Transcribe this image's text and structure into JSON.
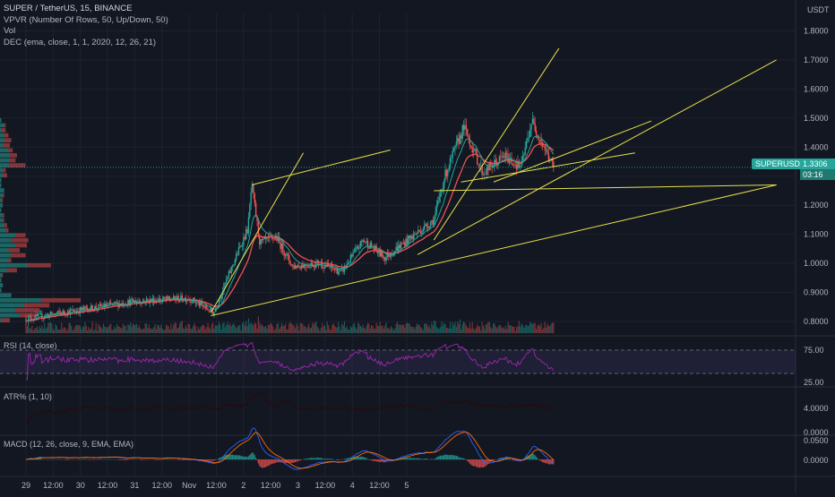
{
  "legend": {
    "symbol": "SUPER / TetherUS, 15, BINANCE",
    "ind1": "VPVR (Number Of Rows, 50, Up/Down, 50)",
    "ind2": "Vol",
    "ind3": "DEC (ema, close, 1, 1, 2020, 12, 26, 21)"
  },
  "currency": "USDT",
  "symbol_tag": "SUPERUSDT",
  "last_price": "1.3306",
  "countdown": "03:16",
  "panes": {
    "rsi": {
      "label": "RSI (14, close)",
      "ticks": [
        "75.00",
        "25.00"
      ]
    },
    "atr": {
      "label": "ATR% (1, 10)",
      "ticks": [
        "4.0000",
        "0.0000"
      ]
    },
    "macd": {
      "label": "MACD (12, 26, close, 9, EMA, EMA)",
      "ticks": [
        "0.0500",
        "0.0000"
      ]
    }
  },
  "colors": {
    "up": "#26a69a",
    "down": "#ef5350",
    "ema": "#ef5350",
    "trend": "#e6e04a",
    "rsi": "#9c27b0",
    "macd": "#2962ff",
    "signal": "#ff6d00"
  },
  "chart_data": {
    "type": "candlestick",
    "price_axis": [
      "1.8000",
      "1.7000",
      "1.6000",
      "1.5000",
      "1.4000",
      "1.3000",
      "1.2000",
      "1.1000",
      "1.0000",
      "0.9000",
      "0.8000"
    ],
    "time_axis": [
      "29",
      "12:00",
      "30",
      "12:00",
      "31",
      "12:00",
      "Nov",
      "12:00",
      "2",
      "12:00",
      "3",
      "12:00",
      "4",
      "12:00",
      "5"
    ],
    "ylim": [
      0.76,
      1.86
    ],
    "key_prices": [
      {
        "t": 0.0,
        "p": 0.81
      },
      {
        "t": 2.0,
        "p": 0.87
      },
      {
        "t": 3.0,
        "p": 0.88
      },
      {
        "t": 3.45,
        "p": 0.83
      },
      {
        "t": 3.9,
        "p": 1.04
      },
      {
        "t": 4.08,
        "p": 1.12
      },
      {
        "t": 4.15,
        "p": 1.27
      },
      {
        "t": 4.3,
        "p": 1.07
      },
      {
        "t": 4.6,
        "p": 1.09
      },
      {
        "t": 4.9,
        "p": 0.99
      },
      {
        "t": 5.4,
        "p": 1.0
      },
      {
        "t": 5.8,
        "p": 0.97
      },
      {
        "t": 6.2,
        "p": 1.08
      },
      {
        "t": 6.6,
        "p": 1.02
      },
      {
        "t": 7.5,
        "p": 1.15
      },
      {
        "t": 7.7,
        "p": 1.3
      },
      {
        "t": 8.05,
        "p": 1.47
      },
      {
        "t": 8.4,
        "p": 1.31
      },
      {
        "t": 8.8,
        "p": 1.37
      },
      {
        "t": 9.1,
        "p": 1.33
      },
      {
        "t": 9.3,
        "p": 1.49
      },
      {
        "t": 9.7,
        "p": 1.3306
      }
    ],
    "trend_lines": [
      {
        "x1": 3.4,
        "y1": 0.82,
        "x2": 13.8,
        "y2": 1.27
      },
      {
        "x1": 3.4,
        "y1": 0.83,
        "x2": 5.1,
        "y2": 1.38
      },
      {
        "x1": 4.15,
        "y1": 1.27,
        "x2": 6.7,
        "y2": 1.39
      },
      {
        "x1": 7.5,
        "y1": 1.25,
        "x2": 13.8,
        "y2": 1.27
      },
      {
        "x1": 7.5,
        "y1": 1.08,
        "x2": 9.8,
        "y2": 1.74
      },
      {
        "x1": 7.2,
        "y1": 1.03,
        "x2": 13.8,
        "y2": 1.7
      },
      {
        "x1": 8.0,
        "y1": 1.28,
        "x2": 11.2,
        "y2": 1.38
      },
      {
        "x1": 8.6,
        "y1": 1.28,
        "x2": 11.5,
        "y2": 1.49
      }
    ]
  }
}
